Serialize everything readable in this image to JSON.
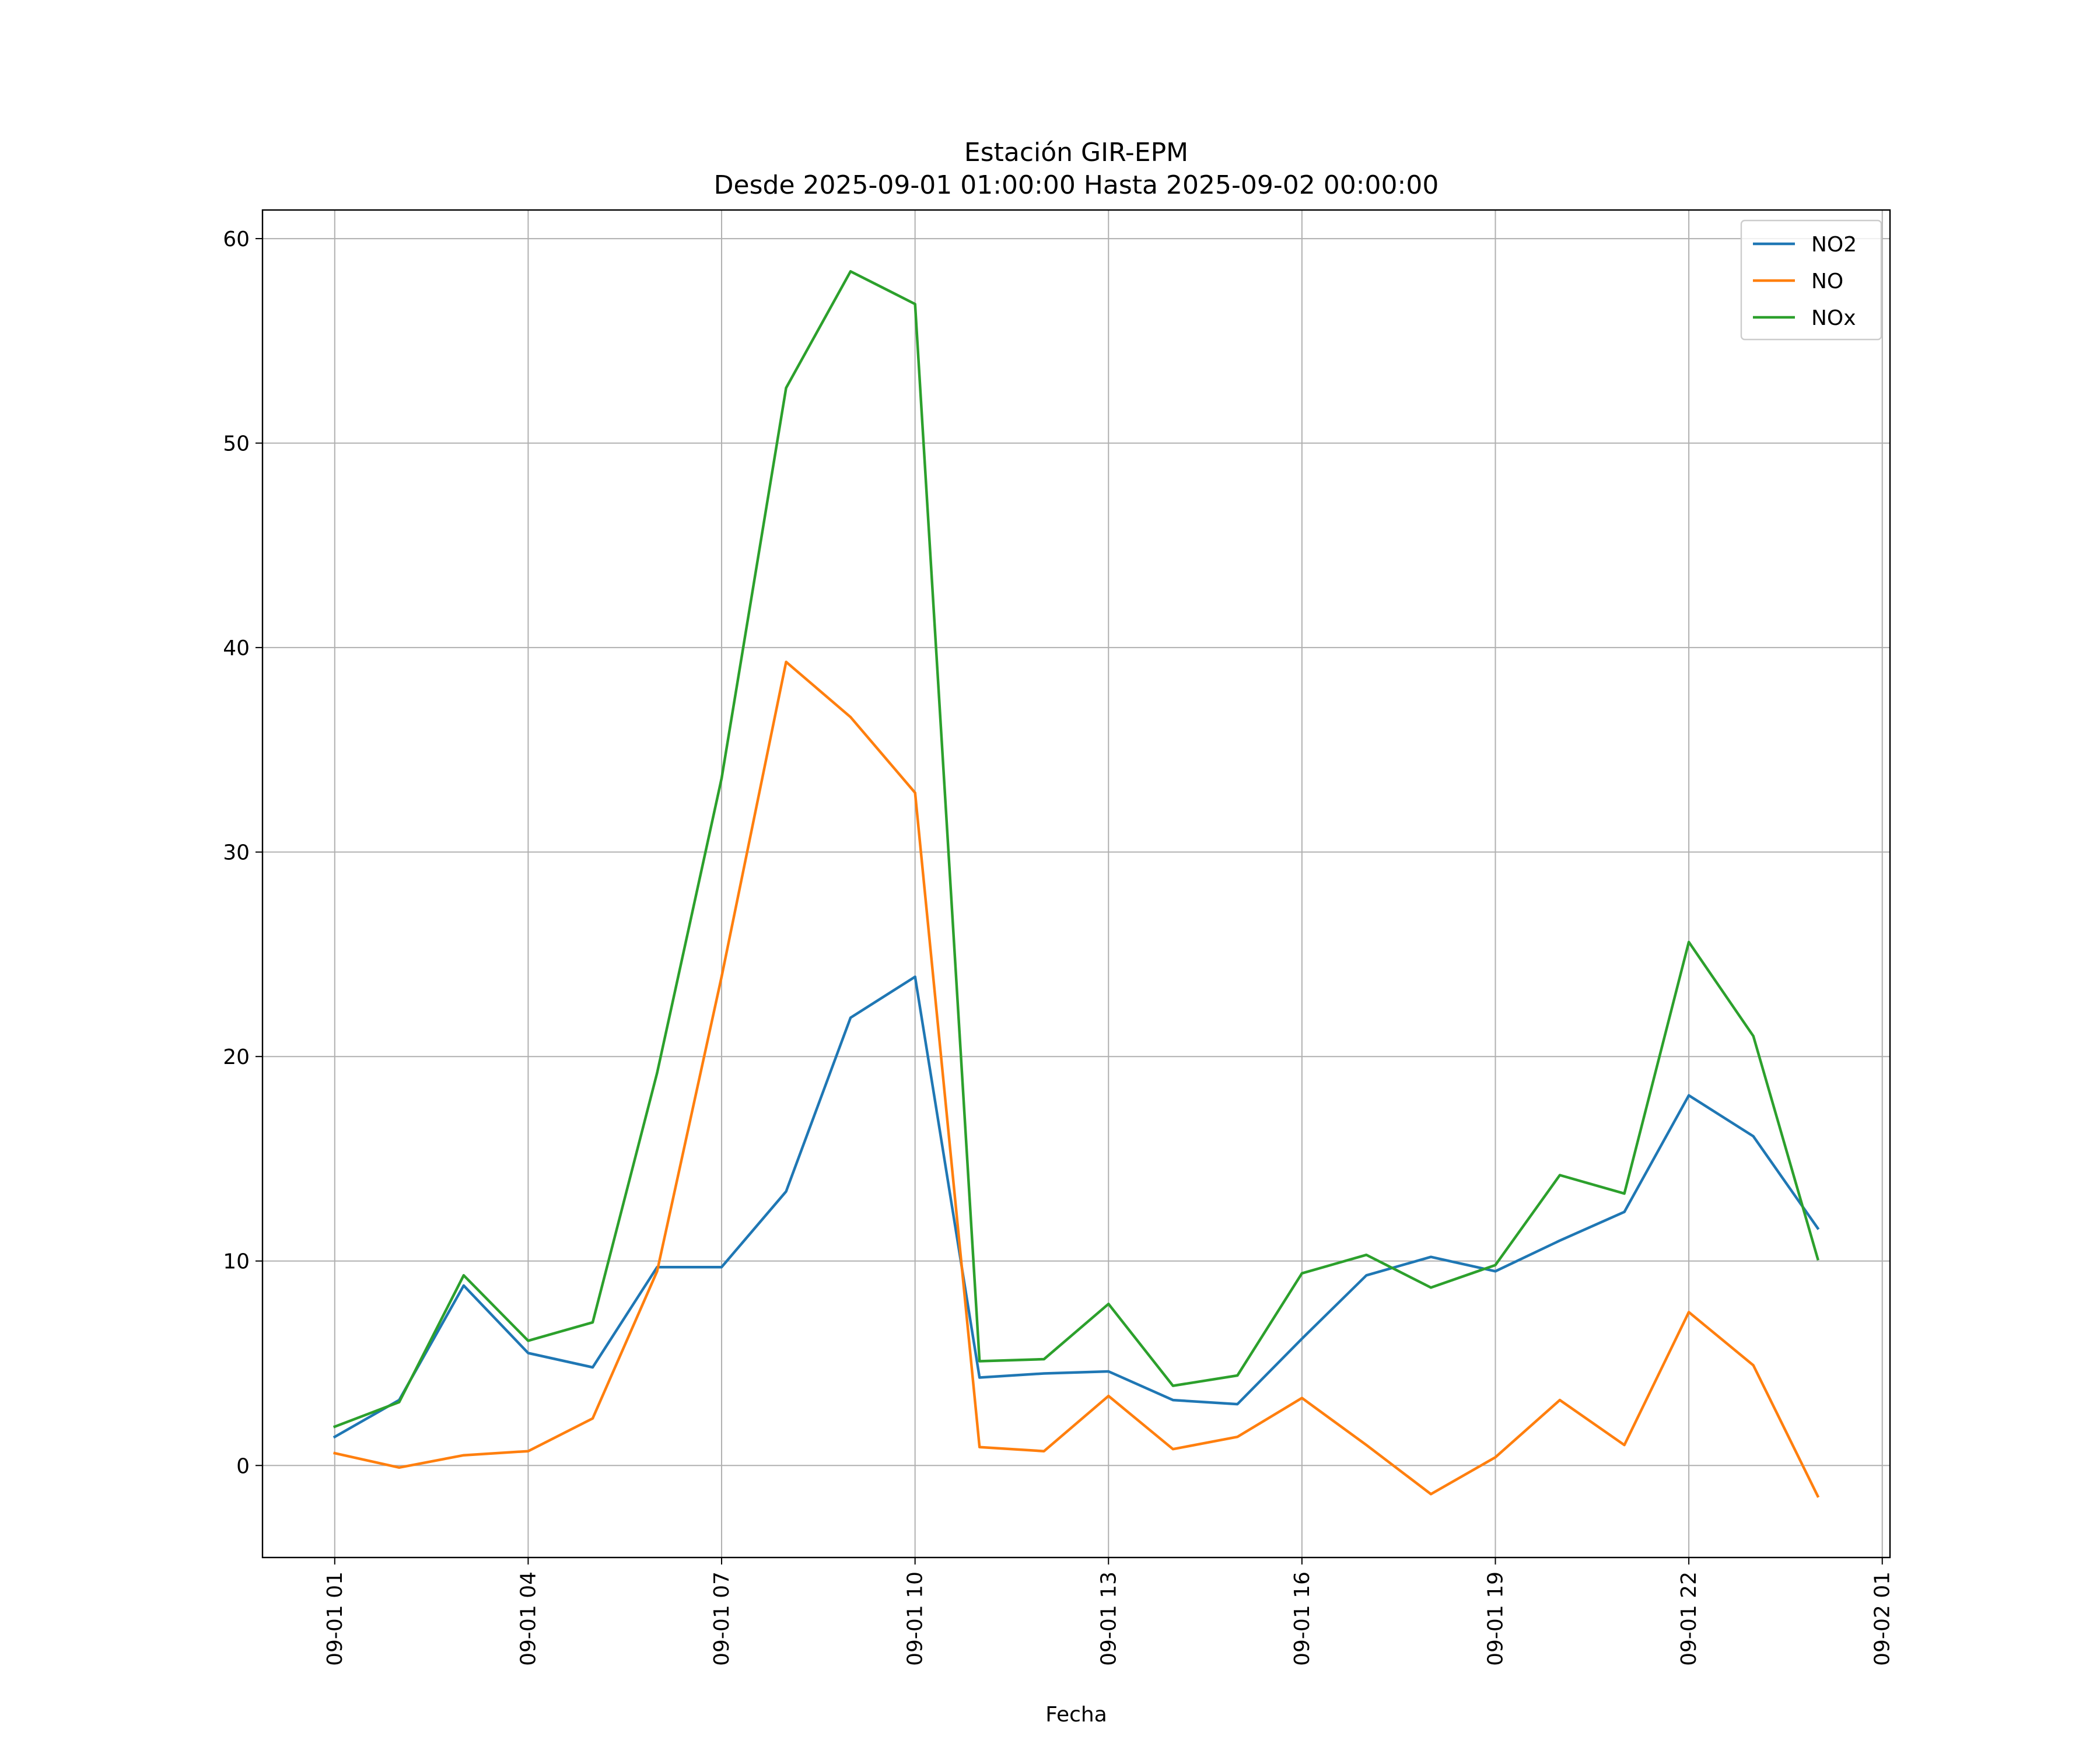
{
  "chart_data": {
    "type": "line",
    "title": "Estación GIR-EPM",
    "subtitle": "Desde 2025-09-01 01:00:00 Hasta 2025-09-02 00:00:00",
    "xlabel": "Fecha",
    "ylabel": "",
    "x": [
      "09-01 01",
      "09-01 02",
      "09-01 03",
      "09-01 04",
      "09-01 05",
      "09-01 06",
      "09-01 07",
      "09-01 08",
      "09-01 09",
      "09-01 10",
      "09-01 11",
      "09-01 12",
      "09-01 13",
      "09-01 14",
      "09-01 15",
      "09-01 16",
      "09-01 17",
      "09-01 18",
      "09-01 19",
      "09-01 20",
      "09-01 21",
      "09-01 22",
      "09-01 23",
      "09-02 00"
    ],
    "x_ticks": [
      "09-01 01",
      "09-01 04",
      "09-01 07",
      "09-01 10",
      "09-01 13",
      "09-01 16",
      "09-01 19",
      "09-01 22",
      "09-02 01"
    ],
    "y_ticks": [
      "0",
      "10",
      "20",
      "30",
      "40",
      "50",
      "60"
    ],
    "xlim_hours": [
      -1.12,
      24.12
    ],
    "ylim": [
      -4.5,
      61.4
    ],
    "grid": true,
    "legend_position": "top-right",
    "series": [
      {
        "name": "NO2",
        "color": "#1f77b4",
        "values": [
          1.4,
          3.2,
          8.8,
          5.5,
          4.8,
          9.7,
          9.7,
          13.4,
          21.9,
          23.9,
          4.3,
          4.5,
          4.6,
          3.2,
          3.0,
          6.2,
          9.3,
          10.2,
          9.5,
          11.0,
          12.4,
          18.1,
          16.1,
          11.6
        ]
      },
      {
        "name": "NO",
        "color": "#ff7f0e",
        "values": [
          0.6,
          -0.1,
          0.5,
          0.7,
          2.3,
          9.5,
          23.9,
          39.3,
          36.6,
          32.9,
          0.9,
          0.7,
          3.4,
          0.8,
          1.4,
          3.3,
          1.0,
          -1.4,
          0.4,
          3.2,
          1.0,
          7.5,
          4.9,
          -1.5
        ]
      },
      {
        "name": "NOx",
        "color": "#2ca02c",
        "values": [
          1.9,
          3.1,
          9.3,
          6.1,
          7.0,
          19.2,
          33.6,
          52.7,
          58.4,
          56.8,
          5.1,
          5.2,
          7.9,
          3.9,
          4.4,
          9.4,
          10.3,
          8.7,
          9.8,
          14.2,
          13.3,
          25.6,
          21.0,
          10.1
        ]
      }
    ]
  }
}
